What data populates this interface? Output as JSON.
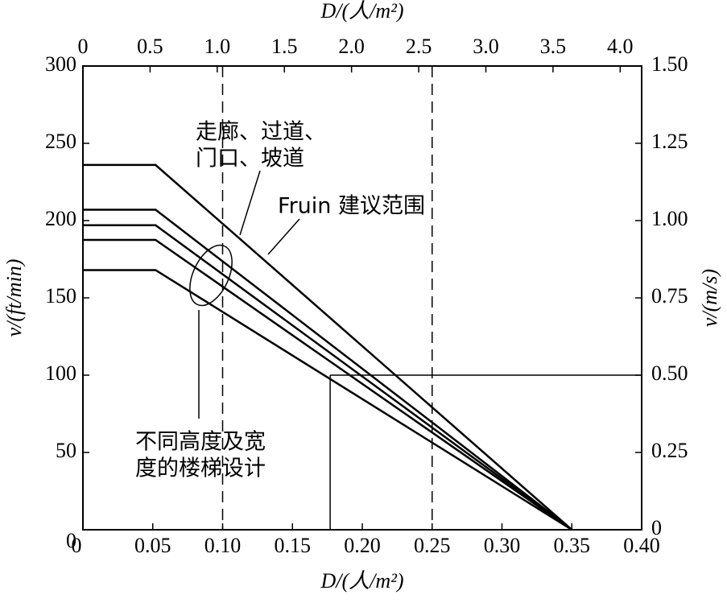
{
  "chart_data": {
    "type": "line",
    "title_top_axis": "D/(人/m²)",
    "xlabel": "D/(人/m²)",
    "ylabel": "v/(ft/min)",
    "y2label": "v/(m/s)",
    "x": [
      0,
      0.052,
      0.35
    ],
    "series": [
      {
        "color": "#000000",
        "values": [
          236,
          236,
          0
        ]
      },
      {
        "color": "#000000",
        "values": [
          207,
          207,
          0
        ]
      },
      {
        "color": "#000000",
        "values": [
          197,
          197,
          0
        ]
      },
      {
        "color": "#000000",
        "values": [
          187.5,
          187.5,
          0
        ]
      },
      {
        "color": "#000000",
        "values": [
          168,
          168,
          0
        ]
      }
    ],
    "xlim": [
      0,
      0.4
    ],
    "xticks": [
      0,
      0.05,
      {
        "value": 0.1,
        "label": "0.10"
      },
      0.15,
      {
        "value": 0.2,
        "label": "0.20"
      },
      0.25,
      {
        "value": 0.3,
        "label": "0.30"
      },
      0.35,
      {
        "value": 0.4,
        "label": "0.40"
      }
    ],
    "x2lim": [
      0,
      4.16
    ],
    "x2ticks": [
      0,
      0.5,
      {
        "value": 1,
        "label": "1.0"
      },
      1.5,
      {
        "value": 2,
        "label": "2.0"
      },
      2.5,
      {
        "value": 3,
        "label": "3.0"
      },
      3.5,
      {
        "value": 4,
        "label": "4.0"
      }
    ],
    "ylim": [
      0,
      300
    ],
    "yticks": [
      0,
      50,
      100,
      150,
      200,
      250,
      300
    ],
    "y2lim": [
      0,
      1.5
    ],
    "y2ticks": [
      0,
      0.25,
      {
        "value": 0.5,
        "label": "0.50"
      },
      0.75,
      {
        "value": 1,
        "label": "1.00"
      },
      1.25,
      {
        "value": 1.5,
        "label": "1.50"
      }
    ],
    "dashed_x": [
      0.1,
      0.25
    ],
    "reference": {
      "x": 0.177,
      "y": 100
    },
    "annotations": [
      "走廊、过道、",
      "门口、坡道",
      "Fruin 建议范围",
      "不同高度及宽",
      "度的楼梯设计"
    ]
  }
}
